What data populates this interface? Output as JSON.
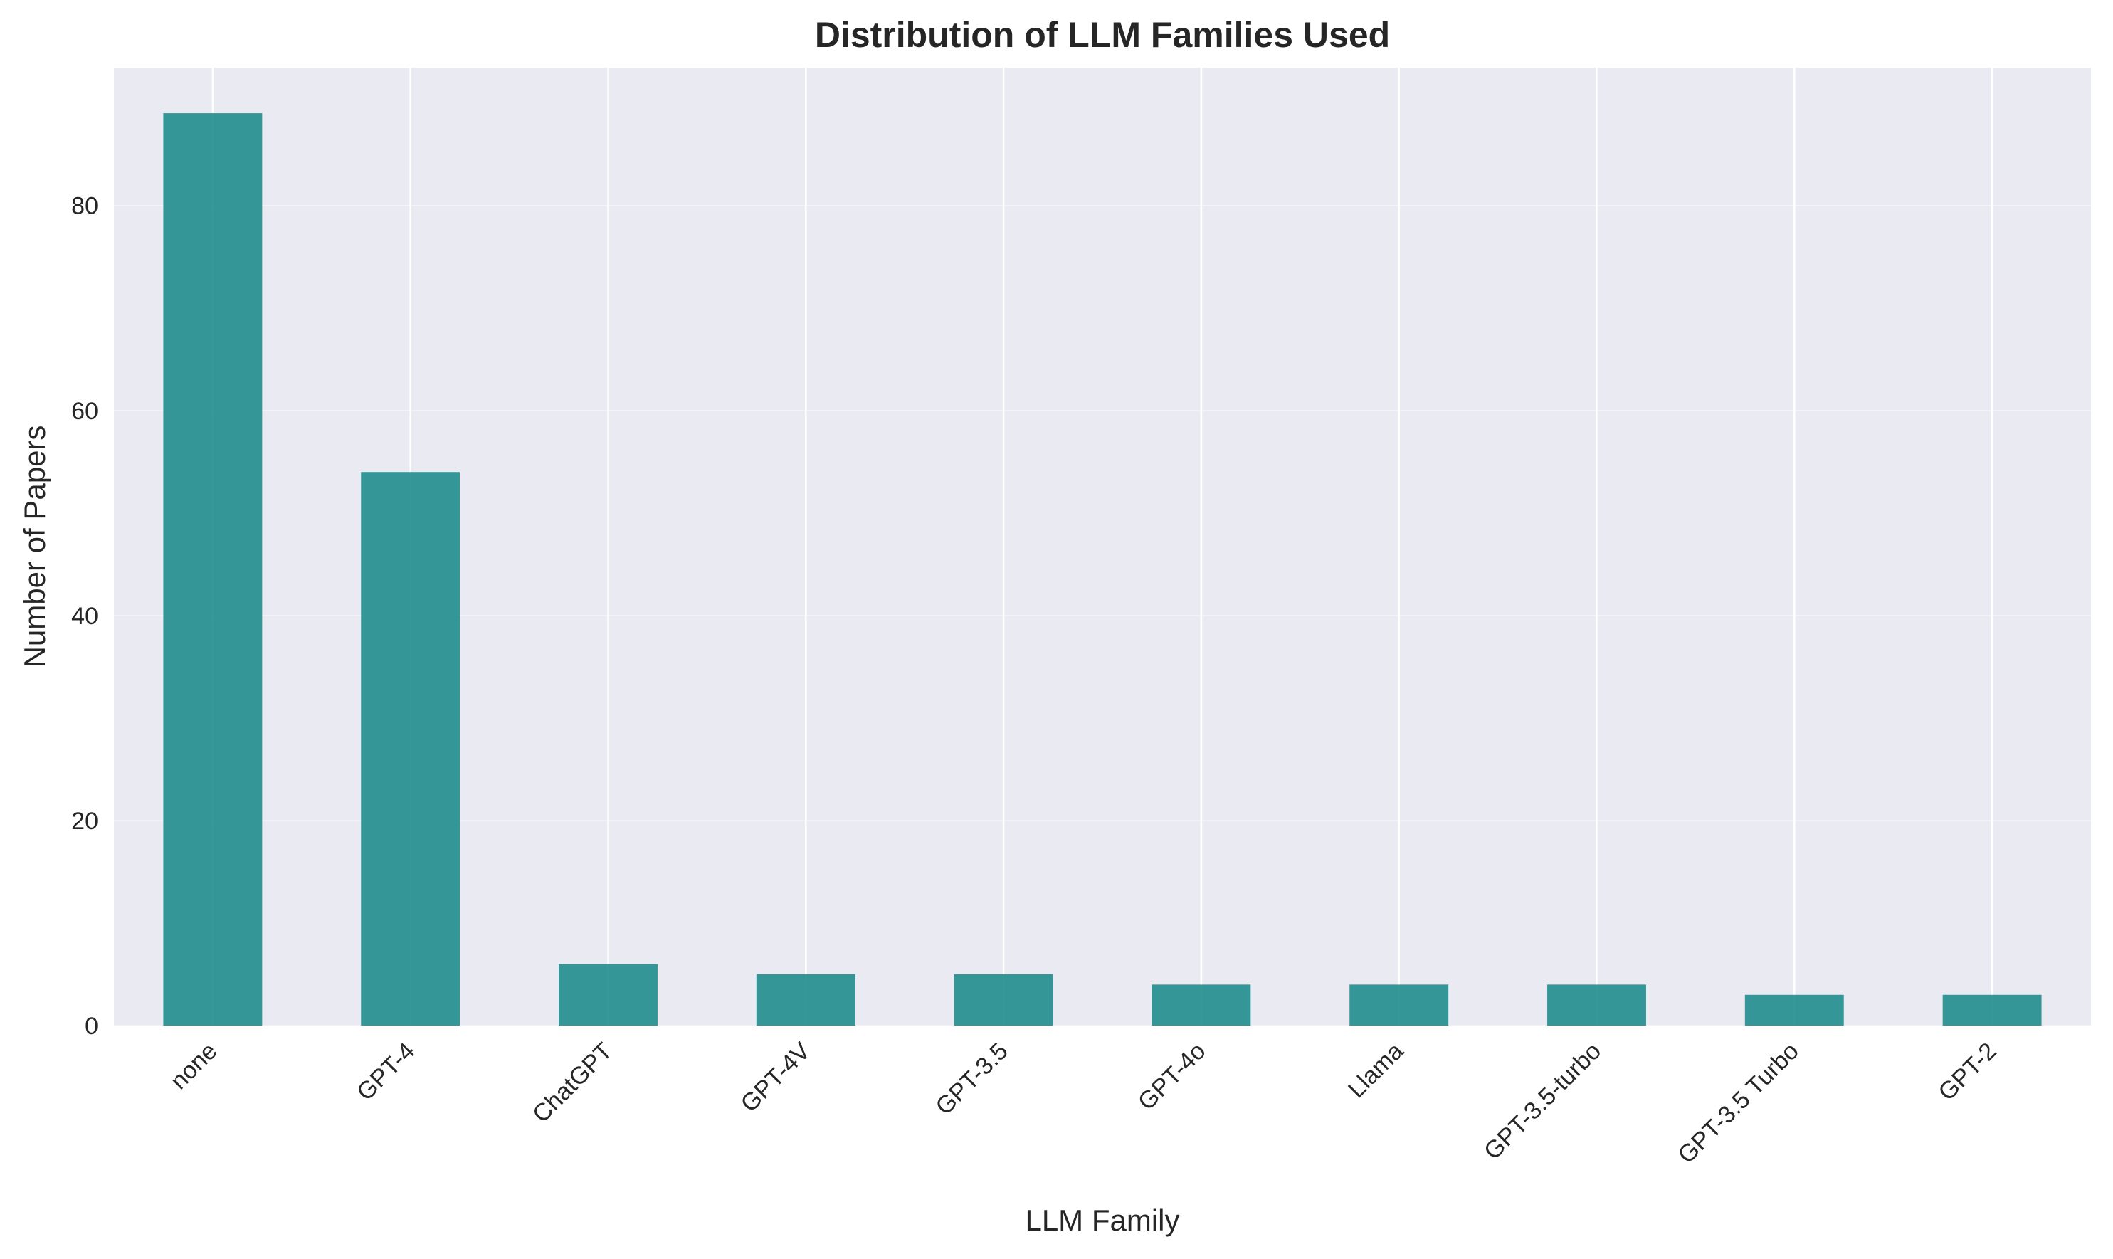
{
  "chart_data": {
    "type": "bar",
    "title": "Distribution of LLM Families Used",
    "xlabel": "LLM Family",
    "ylabel": "Number of Papers",
    "categories": [
      "none",
      "GPT-4",
      "ChatGPT",
      "GPT-4V",
      "GPT-3.5",
      "GPT-4o",
      "Llama",
      "GPT-3.5-turbo",
      "GPT-3.5 Turbo",
      "GPT-2"
    ],
    "values": [
      89,
      54,
      6,
      5,
      5,
      4,
      4,
      4,
      3,
      3
    ],
    "ylim": [
      0,
      93.45
    ],
    "yticks": [
      0,
      20,
      40,
      60,
      80
    ],
    "grid": true,
    "legend": "none"
  },
  "colors": {
    "bar": "#1a8a89",
    "plot_background": "#eaeaf2",
    "grid": "#ffffff"
  }
}
